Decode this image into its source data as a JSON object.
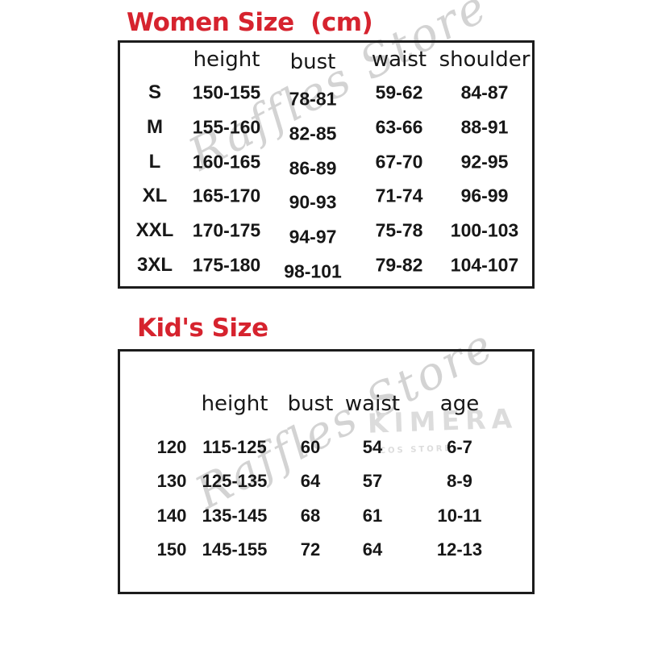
{
  "women": {
    "title": "Women Size  (cm)",
    "headers": [
      "height",
      "bust",
      "waist",
      "shoulder"
    ],
    "rows": [
      [
        "S",
        "150-155",
        "78-81",
        "59-62",
        "84-87"
      ],
      [
        "M",
        "155-160",
        "82-85",
        "63-66",
        "88-91"
      ],
      [
        "L",
        "160-165",
        "86-89",
        "67-70",
        "92-95"
      ],
      [
        "XL",
        "165-170",
        "90-93",
        "71-74",
        "96-99"
      ],
      [
        "XXL",
        "170-175",
        "94-97",
        "75-78",
        "100-103"
      ],
      [
        "3XL",
        "175-180",
        "98-101",
        "79-82",
        "104-107"
      ]
    ]
  },
  "kids": {
    "title": "Kid's Size",
    "headers": [
      "height",
      "bust",
      "waist",
      "age"
    ],
    "rows": [
      [
        "120",
        "115-125",
        "60",
        "54",
        "6-7"
      ],
      [
        "130",
        "125-135",
        "64",
        "57",
        "8-9"
      ],
      [
        "140",
        "135-145",
        "68",
        "61",
        "10-11"
      ],
      [
        "150",
        "145-155",
        "72",
        "64",
        "12-13"
      ]
    ]
  },
  "watermarks": {
    "script_text": "Raffles Store",
    "brand_text": "KIMERA",
    "brand_subtext": "COS STORE"
  },
  "colors": {
    "title_red": "#d6232e",
    "text_black": "#171717",
    "border_black": "#1c1c1c",
    "watermark_gray": "#c9c9c9",
    "brand_watermark": "#dcdcdc"
  }
}
